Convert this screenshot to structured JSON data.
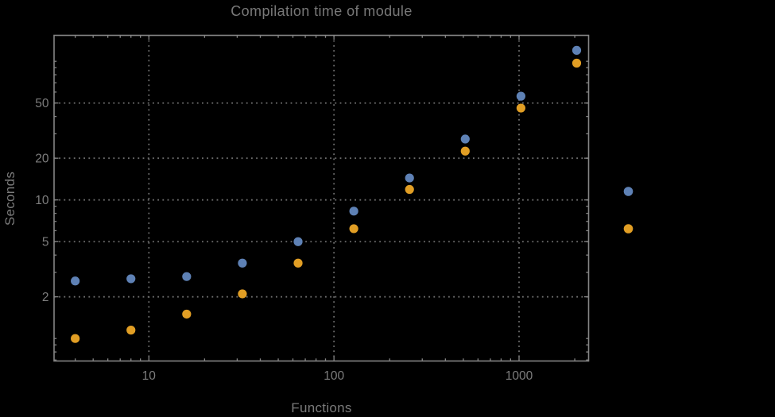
{
  "title": "Compilation time of module",
  "axes": {
    "x_label": "Functions",
    "y_label": "Seconds",
    "x_tick_labels": [
      "10",
      "100",
      "1000"
    ],
    "y_tick_labels": [
      "50",
      "20",
      "10",
      "5",
      "2"
    ]
  },
  "chart_data": {
    "type": "scatter",
    "title": "Compilation time of module",
    "xlabel": "Functions",
    "ylabel": "Seconds",
    "x_scale": "log",
    "y_scale": "log",
    "x_range": [
      3.05,
      2365
    ],
    "y_range": [
      0.69,
      155
    ],
    "grid": "dotted lines at labeled major ticks",
    "legend_position": "right-outside, markers only (no visible text)",
    "x_major_ticks": [
      10,
      100,
      1000
    ],
    "y_major_ticks": [
      50,
      20,
      10,
      5,
      2
    ],
    "x_minor_ticks": [
      4,
      5,
      6,
      7,
      8,
      9,
      20,
      30,
      40,
      50,
      60,
      70,
      80,
      90,
      200,
      300,
      400,
      500,
      600,
      700,
      800,
      900,
      2000
    ],
    "y_minor_ticks": [
      0.7,
      0.8,
      0.9,
      1,
      3,
      4,
      6,
      7,
      8,
      9,
      30,
      40,
      60,
      70,
      80,
      90,
      100
    ],
    "x": [
      4,
      8,
      16,
      32,
      64,
      128,
      256,
      512,
      1024,
      2048
    ],
    "series": [
      {
        "name": "series-blue",
        "color": "#5e81b5",
        "values": [
          2.6,
          2.7,
          2.8,
          3.5,
          5.0,
          8.3,
          14.4,
          27.5,
          56,
          120
        ]
      },
      {
        "name": "series-orange",
        "color": "#e19e24",
        "values": [
          1.0,
          1.15,
          1.5,
          2.1,
          3.5,
          6.2,
          11.9,
          22.5,
          46,
          97
        ]
      }
    ],
    "legend_markers": [
      {
        "name": "legend-marker-blue",
        "color": "#5e81b5"
      },
      {
        "name": "legend-marker-orange",
        "color": "#e19e24"
      }
    ]
  },
  "colors": {
    "background": "#000000",
    "frame": "#858585",
    "grid": "#6e6e6e",
    "text": "#7a7a7a",
    "series_blue": "#5e81b5",
    "series_orange": "#e19e24"
  }
}
